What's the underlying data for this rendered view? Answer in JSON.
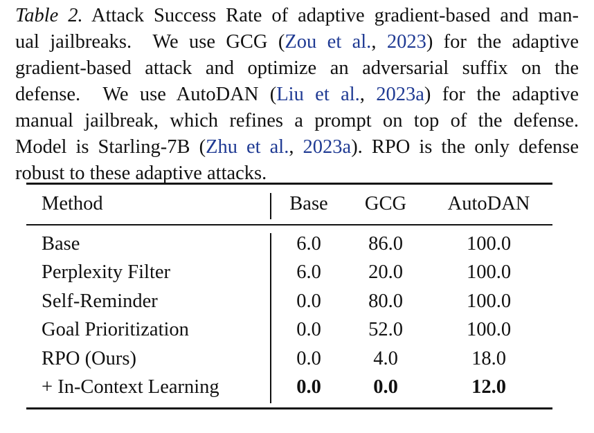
{
  "caption": {
    "label": "Table 2.",
    "lines": [
      [
        " Attack Success Rate of adaptive gradient-based and man-"
      ],
      [
        "ual jailbreaks.  We use GCG (",
        "Zou et al.",
        ", ",
        "2023",
        ") for the adaptive"
      ],
      [
        "gradient-based attack and optimize an adversarial suffix on the"
      ],
      [
        "defense.  We use AutoDAN (",
        "Liu et al.",
        ", ",
        "2023a",
        ") for the adaptive"
      ],
      [
        "manual jailbreak, which refines a prompt on top of the defense."
      ],
      [
        "Model is Starling-7B (",
        "Zhu et al.",
        ", ",
        "2023a",
        "). RPO is the only defense"
      ],
      [
        "robust to these adaptive attacks."
      ]
    ]
  },
  "table": {
    "header": [
      "Method",
      "Base",
      "GCG",
      "AutoDAN"
    ],
    "rows": [
      [
        "Base",
        "6.0",
        "86.0",
        "100.0"
      ],
      [
        "Perplexity Filter",
        "6.0",
        "20.0",
        "100.0"
      ],
      [
        "Self-Reminder",
        "0.0",
        "80.0",
        "100.0"
      ],
      [
        "Goal Prioritization",
        "0.0",
        "52.0",
        "100.0"
      ],
      [
        "RPO (Ours)",
        "0.0",
        "4.0",
        "18.0"
      ],
      [
        "+ In-Context Learning",
        "0.0",
        "0.0",
        "12.0"
      ]
    ]
  }
}
